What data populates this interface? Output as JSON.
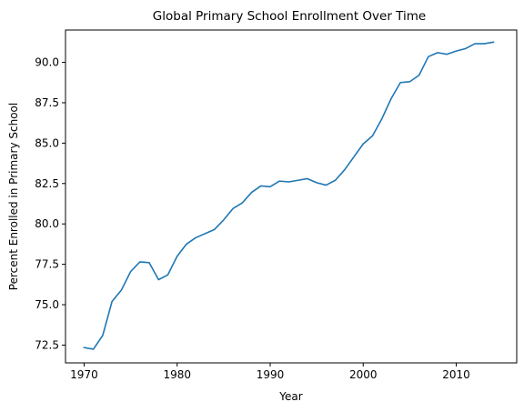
{
  "chart_data": {
    "type": "line",
    "title": "Global Primary School Enrollment Over Time",
    "xlabel": "Year",
    "ylabel": "Percent Enrolled in Primary School",
    "xlim": [
      1968,
      2016.5
    ],
    "ylim": [
      71.4,
      92.0
    ],
    "xticks": [
      1970,
      1980,
      1990,
      2000,
      2010
    ],
    "yticks": [
      72.5,
      75.0,
      77.5,
      80.0,
      82.5,
      85.0,
      87.5,
      90.0
    ],
    "grid": false,
    "line_color": "#1f77b4",
    "series": [
      {
        "x": [
          1970,
          1971,
          1972,
          1973,
          1974,
          1975,
          1976,
          1977,
          1978,
          1979,
          1980,
          1981,
          1982,
          1983,
          1984,
          1985,
          1986,
          1987,
          1988,
          1989,
          1990,
          1991,
          1992,
          1993,
          1994,
          1995,
          1996,
          1997,
          1998,
          1999,
          2000,
          2001,
          2002,
          2003,
          2004,
          2005,
          2006,
          2007,
          2008,
          2009,
          2010,
          2011,
          2012,
          2013,
          2014
        ],
        "values": [
          72.35,
          72.25,
          73.1,
          75.2,
          75.9,
          77.05,
          77.65,
          77.6,
          76.55,
          76.85,
          78.0,
          78.75,
          79.15,
          79.4,
          79.65,
          80.25,
          80.95,
          81.3,
          81.95,
          82.35,
          82.3,
          82.65,
          82.6,
          82.7,
          82.8,
          82.55,
          82.4,
          82.7,
          83.35,
          84.15,
          84.95,
          85.45,
          86.5,
          87.75,
          88.75,
          88.8,
          89.2,
          90.35,
          90.6,
          90.5,
          90.7,
          90.85,
          91.15,
          91.15,
          91.25
        ]
      }
    ]
  }
}
